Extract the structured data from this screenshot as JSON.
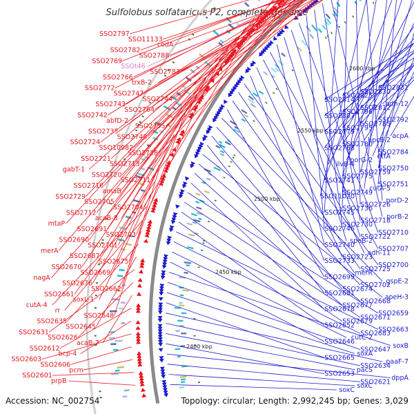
{
  "title": "Sulfolobus solfataricus P2, complete genome",
  "accession": "Accession: NC_002754",
  "topology": "Topology: circular; Length: 2,992,245 bp; Genes: 3,029",
  "colors": {
    "forward": "#e8141c",
    "reverse": "#1a1ad0",
    "rna": "#e078c8",
    "backbone": "#8a8a8a",
    "gc_plus": "#3a7a3a"
  },
  "ticks": [
    "2600 kbp",
    "2550 kbp",
    "2500 kbp",
    "2450 kbp",
    "2400 kbp"
  ],
  "forward_labels": [
    "SSO2797",
    "SSO11133",
    "codA",
    "SSO2782",
    "SSO2788",
    "SSO2769",
    "SSOt46",
    "SSO2783",
    "SSO2766",
    "trxB-2",
    "SSO2772",
    "SSO2747",
    "SSO2744",
    "SSO2743",
    "SSO2764",
    "SSO2742",
    "abfD-2",
    "SSO2755",
    "SSO2735",
    "SSO2748",
    "SSO2724",
    "SSO10982",
    "SSO2728",
    "SSO2721",
    "SSO2713",
    "gabT-1",
    "SSO2720",
    "SSO2711",
    "SSO2716",
    "amaB",
    "SSO2729",
    "SSO2705",
    "SSO2704",
    "SSO2712",
    "acaB-8",
    "mtaP",
    "SSO2691",
    "SSO2703",
    "SSO2690",
    "SSO2701",
    "merA",
    "SSO2687",
    "SSO2675",
    "SSO2670",
    "SSO2669",
    "nagA",
    "SSO2676",
    "SSO2662",
    "SSO2661",
    "soxL-1",
    "cutA-4",
    "rr",
    "SSO2648",
    "SSO2635",
    "SSO2645",
    "SSO2631",
    "SSO2626",
    "acaB-7",
    "SSO2612",
    "bcp-4",
    "SSO2603",
    "SSO2606",
    "pcm",
    "SSO2601",
    "prpB"
  ],
  "reverse_labels": [
    "SSO2831",
    "SSO2830",
    "SSO2825",
    "SSO2814",
    "adh-12",
    "SSO2812",
    "SSO2796",
    "SSO2807",
    "SSO2792",
    "SSO2785",
    "SSO2795",
    "SSO2779",
    "acpA",
    "hpcE-2",
    "SSO2780",
    "SSO2768",
    "SSO2784",
    "etfA",
    "porG-2",
    "ilvB-4",
    "SSO2750",
    "SSO2759",
    "SSO2775",
    "SSO2741",
    "SSO2751",
    "cutA-5",
    "SSO2749",
    "SSO11020",
    "porD-2",
    "SSO2726",
    "SSO2736",
    "SSO2745",
    "porB-2",
    "SSO2718",
    "SSO2730",
    "SSO2746",
    "SSO2710",
    "SSO2722",
    "speB-2",
    "SSO2740",
    "SSO2707",
    "adh-11",
    "SSO2723",
    "SSO2733",
    "SSO2700",
    "SSO2725",
    "merR",
    "SSO2699",
    "gspE-2",
    "SSO2702",
    "SSO2674",
    "SSO2681",
    "apeH-3",
    "SSO2668",
    "SSO2677",
    "SSO2678",
    "SSO2659",
    "SSO2671",
    "SSO2679",
    "SSO2652",
    "SSO2663",
    "SSO2683",
    "cutC-2",
    "SSO2646",
    "soxB",
    "SSO2647",
    "soxA",
    "SSO2665",
    "paaF-7",
    "SSO2634",
    "pacS",
    "SSO2653",
    "dppA",
    "SSO2621",
    "soxC",
    "soxC"
  ]
}
